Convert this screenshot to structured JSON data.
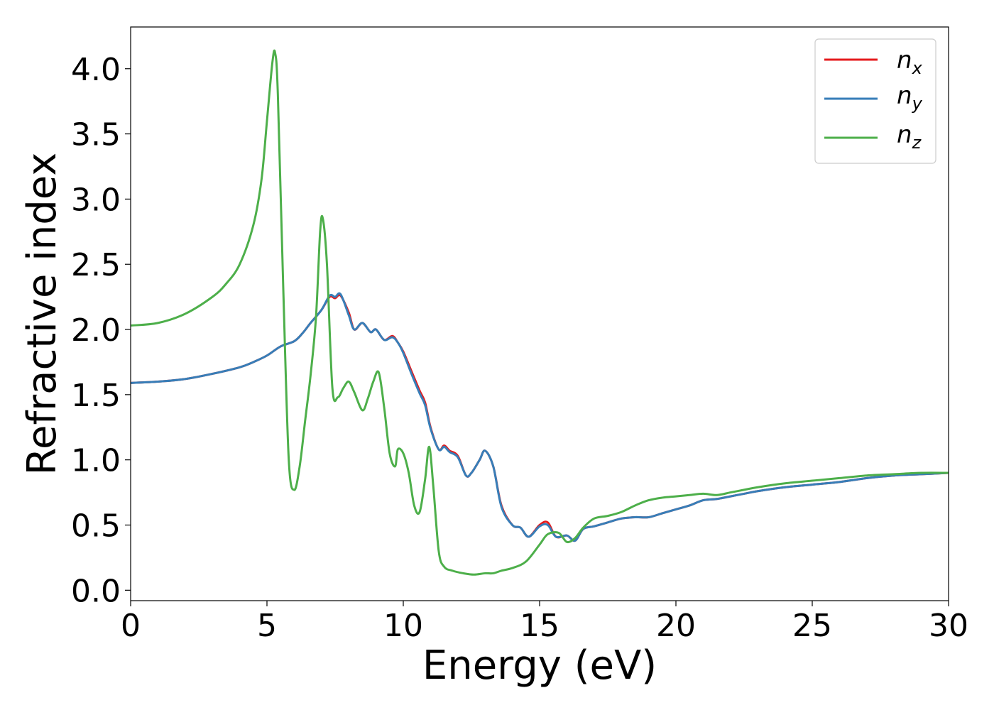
{
  "chart_data": {
    "type": "line",
    "xlabel": "Energy (eV)",
    "ylabel": "Refractive index",
    "xlim": [
      0,
      30
    ],
    "ylim": [
      -0.08,
      4.32
    ],
    "xticks": [
      "0",
      "5",
      "10",
      "15",
      "20",
      "25",
      "30"
    ],
    "yticks": [
      "0.0",
      "0.5",
      "1.0",
      "1.5",
      "2.0",
      "2.5",
      "3.0",
      "3.5",
      "4.0"
    ],
    "grid": false,
    "legend": {
      "placement": "top-right",
      "entries": [
        {
          "base": "n",
          "sub": "x"
        },
        {
          "base": "n",
          "sub": "y"
        },
        {
          "base": "n",
          "sub": "z"
        }
      ]
    },
    "series": [
      {
        "name": "n_x",
        "color": "#e41a1c",
        "x": [
          0,
          1,
          2,
          3,
          4,
          4.5,
          5,
          5.5,
          6,
          6.3,
          6.6,
          7,
          7.3,
          7.5,
          7.7,
          8,
          8.2,
          8.5,
          8.8,
          9,
          9.3,
          9.6,
          9.8,
          10,
          10.3,
          10.6,
          10.8,
          11,
          11.3,
          11.5,
          11.7,
          12,
          12.3,
          12.5,
          12.8,
          13,
          13.3,
          13.6,
          14,
          14.3,
          14.6,
          15,
          15.3,
          15.6,
          16,
          16.3,
          16.6,
          17,
          17.5,
          18,
          18.5,
          19,
          19.5,
          20,
          20.5,
          21,
          21.5,
          22,
          22.5,
          23,
          24,
          25,
          26,
          27,
          28,
          29,
          30
        ],
        "y": [
          1.59,
          1.6,
          1.62,
          1.66,
          1.71,
          1.75,
          1.8,
          1.87,
          1.91,
          1.97,
          2.05,
          2.15,
          2.25,
          2.24,
          2.26,
          2.13,
          2.0,
          2.05,
          1.98,
          2.0,
          1.92,
          1.95,
          1.9,
          1.83,
          1.68,
          1.53,
          1.44,
          1.25,
          1.08,
          1.11,
          1.07,
          1.03,
          0.88,
          0.9,
          1.0,
          1.07,
          0.95,
          0.65,
          0.5,
          0.48,
          0.41,
          0.5,
          0.52,
          0.41,
          0.42,
          0.38,
          0.47,
          0.49,
          0.52,
          0.55,
          0.56,
          0.56,
          0.59,
          0.62,
          0.65,
          0.69,
          0.7,
          0.72,
          0.74,
          0.76,
          0.79,
          0.81,
          0.83,
          0.86,
          0.88,
          0.89,
          0.9
        ]
      },
      {
        "name": "n_y",
        "color": "#377eb8",
        "x": [
          0,
          1,
          2,
          3,
          4,
          4.5,
          5,
          5.5,
          6,
          6.3,
          6.6,
          7,
          7.3,
          7.5,
          7.7,
          8,
          8.2,
          8.5,
          8.8,
          9,
          9.3,
          9.6,
          9.8,
          10,
          10.3,
          10.6,
          10.8,
          11,
          11.3,
          11.5,
          11.7,
          12,
          12.3,
          12.5,
          12.8,
          13,
          13.3,
          13.6,
          14,
          14.3,
          14.6,
          15,
          15.3,
          15.6,
          16,
          16.3,
          16.6,
          17,
          17.5,
          18,
          18.5,
          19,
          19.5,
          20,
          20.5,
          21,
          21.5,
          22,
          22.5,
          23,
          24,
          25,
          26,
          27,
          28,
          29,
          30
        ],
        "y": [
          1.59,
          1.6,
          1.62,
          1.66,
          1.71,
          1.75,
          1.8,
          1.87,
          1.91,
          1.97,
          2.05,
          2.15,
          2.26,
          2.25,
          2.27,
          2.11,
          2.0,
          2.05,
          1.98,
          2.0,
          1.92,
          1.94,
          1.9,
          1.82,
          1.66,
          1.51,
          1.42,
          1.24,
          1.08,
          1.1,
          1.06,
          1.02,
          0.88,
          0.9,
          1.0,
          1.07,
          0.95,
          0.64,
          0.5,
          0.48,
          0.41,
          0.49,
          0.5,
          0.41,
          0.42,
          0.38,
          0.47,
          0.49,
          0.52,
          0.55,
          0.56,
          0.56,
          0.59,
          0.62,
          0.65,
          0.69,
          0.7,
          0.72,
          0.74,
          0.76,
          0.79,
          0.81,
          0.83,
          0.86,
          0.88,
          0.89,
          0.9
        ]
      },
      {
        "name": "n_z",
        "color": "#4daf4a",
        "x": [
          0,
          1,
          2,
          3,
          3.5,
          4,
          4.5,
          4.8,
          5.0,
          5.2,
          5.3,
          5.4,
          5.6,
          5.8,
          6.0,
          6.2,
          6.4,
          6.6,
          6.8,
          6.95,
          7.05,
          7.2,
          7.4,
          7.6,
          7.8,
          8.0,
          8.2,
          8.5,
          8.7,
          8.9,
          9.1,
          9.3,
          9.5,
          9.7,
          9.8,
          10.0,
          10.2,
          10.4,
          10.6,
          10.8,
          10.95,
          11.1,
          11.3,
          11.5,
          11.8,
          12.2,
          12.6,
          13.0,
          13.3,
          13.6,
          14.0,
          14.5,
          15.0,
          15.3,
          15.7,
          16.0,
          16.3,
          16.6,
          17.0,
          17.5,
          18.0,
          18.5,
          19.0,
          19.5,
          20.0,
          20.5,
          21.0,
          21.5,
          22.0,
          22.5,
          23.0,
          24.0,
          25.0,
          26.0,
          27.0,
          28.0,
          29.0,
          30.0
        ],
        "y": [
          2.03,
          2.05,
          2.12,
          2.25,
          2.35,
          2.5,
          2.8,
          3.15,
          3.6,
          4.05,
          4.12,
          3.8,
          2.3,
          1.0,
          0.77,
          0.95,
          1.3,
          1.65,
          2.1,
          2.75,
          2.85,
          2.5,
          1.55,
          1.48,
          1.55,
          1.6,
          1.52,
          1.38,
          1.47,
          1.6,
          1.67,
          1.4,
          1.05,
          0.95,
          1.08,
          1.05,
          0.9,
          0.65,
          0.6,
          0.85,
          1.1,
          0.8,
          0.3,
          0.18,
          0.15,
          0.13,
          0.12,
          0.13,
          0.13,
          0.15,
          0.17,
          0.22,
          0.35,
          0.43,
          0.44,
          0.37,
          0.4,
          0.48,
          0.55,
          0.57,
          0.6,
          0.65,
          0.69,
          0.71,
          0.72,
          0.73,
          0.74,
          0.73,
          0.75,
          0.77,
          0.79,
          0.82,
          0.84,
          0.86,
          0.88,
          0.89,
          0.9,
          0.9
        ]
      }
    ]
  }
}
